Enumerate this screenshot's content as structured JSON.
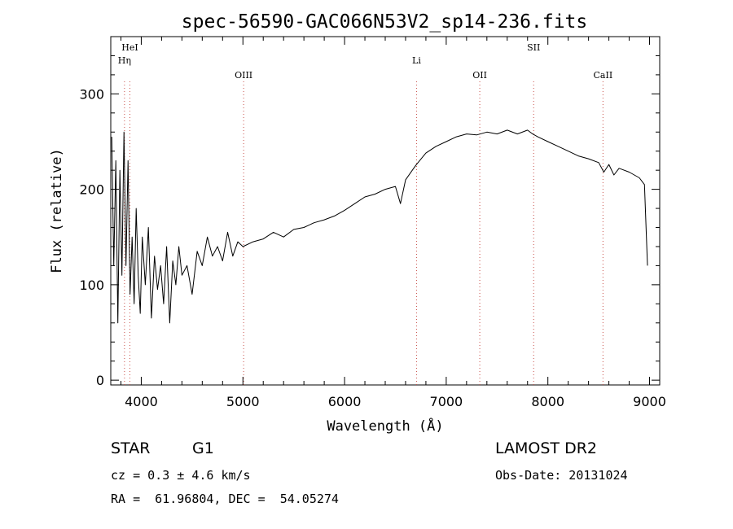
{
  "chart_data": {
    "type": "line",
    "title": "spec-56590-GAC066N53V2_sp14-236.fits",
    "xlabel": "Wavelength (Å)",
    "ylabel": "Flux (relative)",
    "xlim": [
      3700,
      9100
    ],
    "ylim": [
      -5,
      360
    ],
    "x_ticks": [
      4000,
      5000,
      6000,
      7000,
      8000,
      9000
    ],
    "y_ticks": [
      0,
      100,
      200,
      300
    ],
    "series": [
      {
        "x": [
          3710,
          3730,
          3750,
          3770,
          3790,
          3810,
          3830,
          3850,
          3870,
          3890,
          3910,
          3930,
          3950,
          3970,
          3990,
          4010,
          4040,
          4070,
          4100,
          4130,
          4160,
          4190,
          4220,
          4250,
          4280,
          4310,
          4340,
          4370,
          4400,
          4450,
          4500,
          4550,
          4600,
          4650,
          4700,
          4750,
          4800,
          4850,
          4900,
          4950,
          5000,
          5100,
          5200,
          5300,
          5400,
          5500,
          5600,
          5700,
          5800,
          5900,
          6000,
          6100,
          6200,
          6300,
          6400,
          6500,
          6550,
          6600,
          6700,
          6800,
          6900,
          7000,
          7100,
          7200,
          7300,
          7400,
          7500,
          7600,
          7700,
          7800,
          7850,
          7900,
          8000,
          8100,
          8200,
          8300,
          8400,
          8500,
          8550,
          8600,
          8650,
          8700,
          8800,
          8900,
          8950,
          8980
        ],
        "y": [
          255,
          120,
          230,
          60,
          220,
          110,
          260,
          120,
          230,
          90,
          150,
          80,
          180,
          110,
          70,
          150,
          100,
          160,
          65,
          130,
          95,
          120,
          80,
          140,
          60,
          125,
          100,
          140,
          110,
          120,
          90,
          135,
          120,
          150,
          130,
          140,
          125,
          155,
          130,
          145,
          140,
          145,
          148,
          155,
          150,
          158,
          160,
          165,
          168,
          172,
          178,
          185,
          192,
          195,
          200,
          203,
          185,
          210,
          225,
          238,
          245,
          250,
          255,
          258,
          257,
          260,
          258,
          262,
          258,
          262,
          258,
          255,
          250,
          245,
          240,
          235,
          232,
          228,
          218,
          226,
          215,
          222,
          218,
          212,
          205,
          120
        ]
      }
    ],
    "lines": [
      {
        "label": "HeI",
        "x": 3888,
        "row": 0
      },
      {
        "label": "Hη",
        "x": 3835,
        "row": 1
      },
      {
        "label": "OIII",
        "x": 5007,
        "row": 2
      },
      {
        "label": "Li",
        "x": 6708,
        "row": 1
      },
      {
        "label": "OII",
        "x": 7330,
        "row": 2
      },
      {
        "label": "SII",
        "x": 7860,
        "row": 0
      },
      {
        "label": "CaII",
        "x": 8542,
        "row": 2
      }
    ]
  },
  "info": {
    "class": "STAR",
    "subclass": "G1",
    "survey": "LAMOST DR2",
    "cz": "cz = 0.3 ± 4.6 km/s",
    "obs_date": "Obs-Date: 20131024",
    "coords": "RA =  61.96804, DEC =  54.05274"
  }
}
